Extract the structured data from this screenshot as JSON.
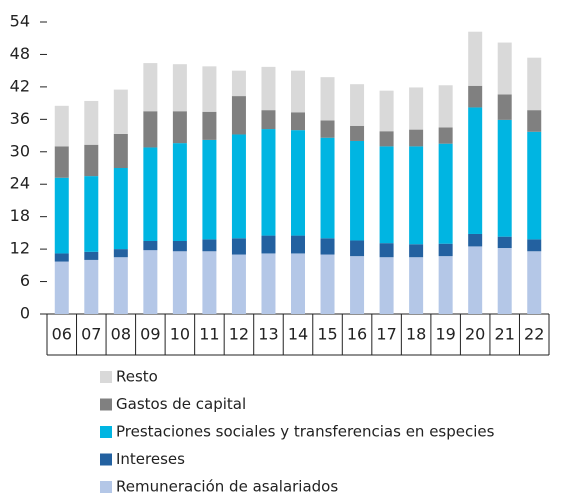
{
  "chart_data": {
    "type": "stacked-bar",
    "categories": [
      "06",
      "07",
      "08",
      "09",
      "10",
      "11",
      "12",
      "13",
      "14",
      "15",
      "16",
      "17",
      "18",
      "19",
      "20",
      "21",
      "22"
    ],
    "series": [
      {
        "name": "Remuneración de asalariados",
        "color": "#b4c7e7",
        "values": [
          9.7,
          10,
          10.5,
          11.8,
          11.6,
          11.6,
          11,
          11.2,
          11.2,
          11,
          10.7,
          10.5,
          10.5,
          10.7,
          12.5,
          12.2,
          11.6
        ]
      },
      {
        "name": "Intereses",
        "color": "#2361a0",
        "values": [
          1.5,
          1.5,
          1.5,
          1.7,
          1.9,
          2.2,
          3,
          3.3,
          3.3,
          3,
          2.9,
          2.6,
          2.4,
          2.3,
          2.3,
          2.1,
          2.2
        ]
      },
      {
        "name": "Prestaciones sociales y transferencias en especies",
        "color": "#00b5e2",
        "values": [
          14,
          14,
          15,
          17.3,
          18.1,
          18.4,
          19.2,
          19.7,
          19.5,
          18.6,
          18.4,
          17.9,
          18.1,
          18.5,
          23.4,
          21.6,
          19.9
        ]
      },
      {
        "name": "Gastos de capital",
        "color": "#808080",
        "values": [
          5.8,
          5.8,
          6.3,
          6.7,
          5.9,
          5.2,
          7.1,
          3.5,
          3.3,
          3.2,
          2.8,
          2.8,
          3.1,
          3,
          4,
          4.7,
          4
        ]
      },
      {
        "name": "Resto",
        "color": "#d9d9d9",
        "values": [
          7.5,
          8.1,
          8.2,
          8.9,
          8.7,
          8.4,
          4.7,
          8,
          7.7,
          8,
          7.7,
          7.5,
          7.8,
          7.8,
          10,
          9.6,
          9.7
        ]
      }
    ],
    "ylim": [
      0,
      54
    ],
    "yticks": [
      0,
      6,
      12,
      18,
      24,
      30,
      36,
      42,
      48,
      54
    ]
  }
}
